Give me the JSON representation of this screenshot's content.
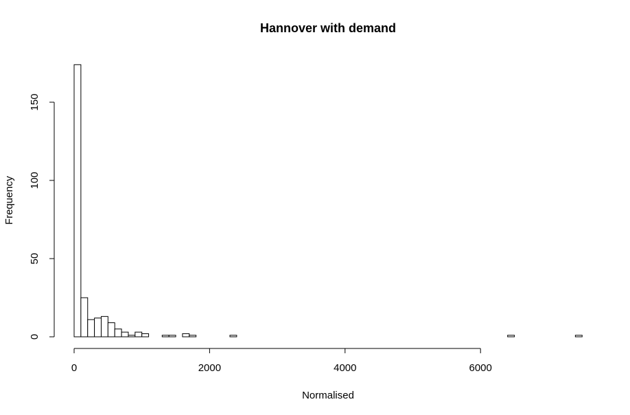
{
  "chart_data": {
    "type": "bar",
    "title": "Hannover with demand",
    "xlabel": "Normalised",
    "ylabel": "Frequency",
    "bin_width": 100,
    "bin_start": 0,
    "counts": [
      174,
      25,
      11,
      12,
      13,
      9,
      5,
      3,
      1,
      3,
      2,
      0,
      0,
      1,
      1,
      0,
      2,
      1,
      0,
      0,
      0,
      0,
      0,
      1,
      0,
      0,
      0,
      0,
      0,
      0,
      0,
      0,
      0,
      0,
      0,
      0,
      0,
      0,
      0,
      0,
      0,
      0,
      0,
      0,
      0,
      0,
      0,
      0,
      0,
      0,
      0,
      0,
      0,
      0,
      0,
      0,
      0,
      0,
      0,
      0,
      0,
      0,
      0,
      0,
      1,
      0,
      0,
      0,
      0,
      0,
      0,
      0,
      0,
      0,
      1
    ],
    "xlim": [
      0,
      7500
    ],
    "ylim": [
      0,
      175
    ],
    "x_ticks": [
      0,
      2000,
      4000,
      6000
    ],
    "y_ticks": [
      0,
      50,
      100,
      150
    ],
    "grid": false
  }
}
